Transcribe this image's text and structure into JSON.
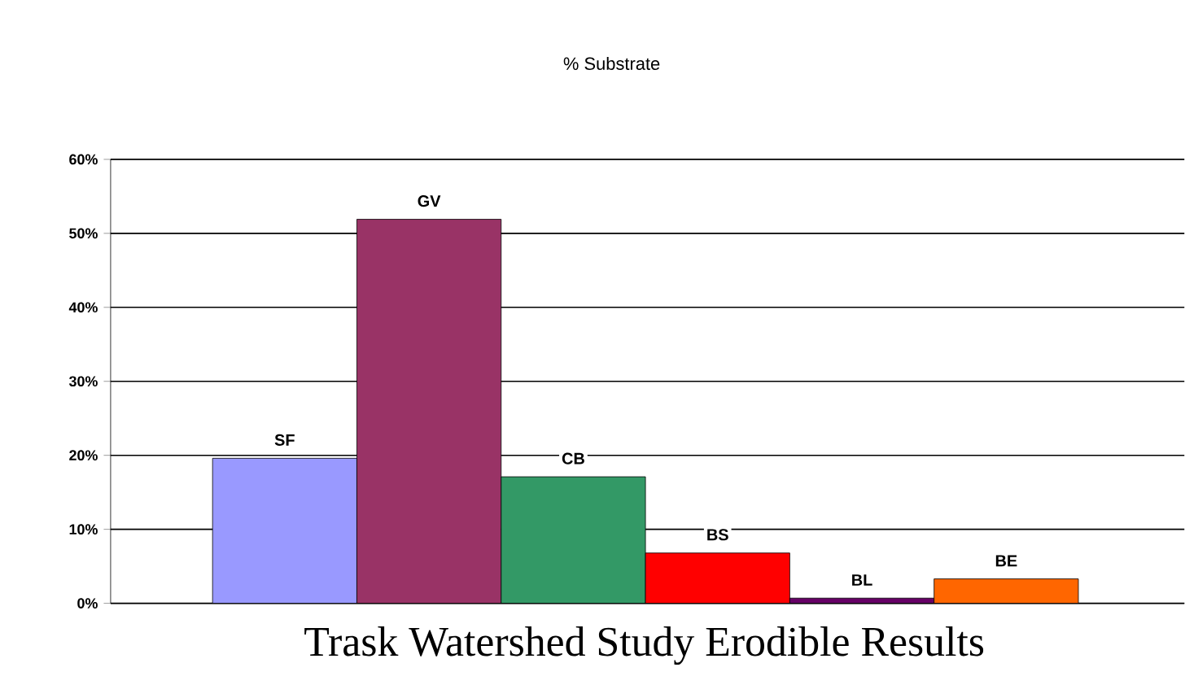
{
  "chart_data": {
    "type": "bar",
    "title": "% Substrate",
    "categories": [
      "SF",
      "GV",
      "CB",
      "BS",
      "BL",
      "BE"
    ],
    "values": [
      19.6,
      51.9,
      17.1,
      6.8,
      0.7,
      3.3
    ],
    "colors": [
      "#9999ff",
      "#993366",
      "#339966",
      "#ff0000",
      "#660066",
      "#ff6600"
    ],
    "ylim": [
      0,
      60
    ],
    "yticks": [
      {
        "value": 0,
        "label": "0%"
      },
      {
        "value": 10,
        "label": "10%"
      },
      {
        "value": 20,
        "label": "20%"
      },
      {
        "value": 30,
        "label": "30%"
      },
      {
        "value": 40,
        "label": "40%"
      },
      {
        "value": 50,
        "label": "50%"
      },
      {
        "value": 60,
        "label": "60%"
      }
    ],
    "grid": "y",
    "annotations": [
      "Trask Watershed Study Erodible Results"
    ]
  }
}
